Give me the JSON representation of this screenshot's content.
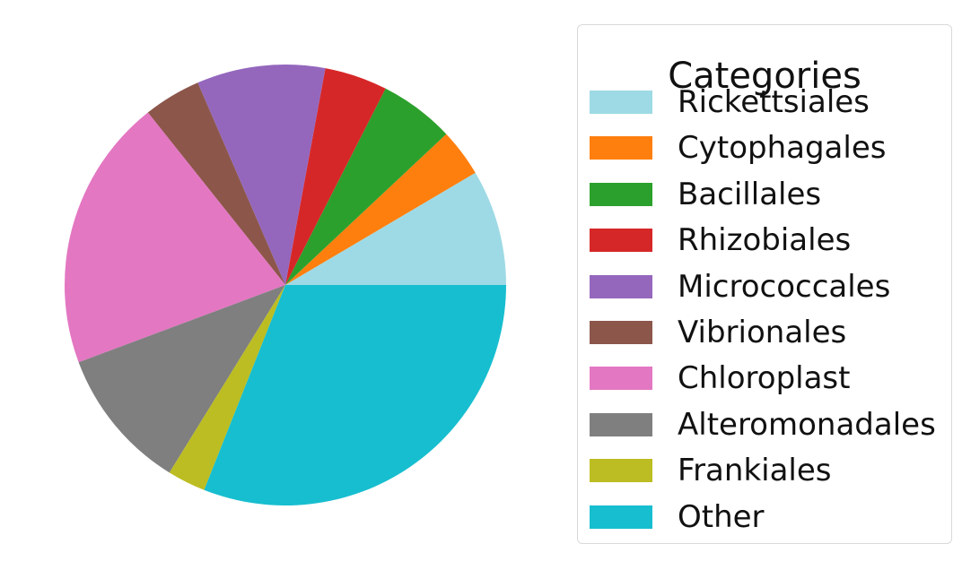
{
  "chart_data": {
    "type": "pie",
    "legend": {
      "title": "Categories",
      "placement": "right"
    },
    "slices": [
      {
        "label": "Rickettsiales",
        "value": 8.5,
        "color": "#9edae5"
      },
      {
        "label": "Cytophagales",
        "value": 3.5,
        "color": "#ff7f0e"
      },
      {
        "label": "Bacillales",
        "value": 5.5,
        "color": "#2ca02c"
      },
      {
        "label": "Rhizobiales",
        "value": 4.6,
        "color": "#d62728"
      },
      {
        "label": "Micrococcales",
        "value": 9.4,
        "color": "#9467bd"
      },
      {
        "label": "Vibrionales",
        "value": 4.2,
        "color": "#8c564b"
      },
      {
        "label": "Chloroplast",
        "value": 20.0,
        "color": "#e377c2"
      },
      {
        "label": "Alteromonadales",
        "value": 10.5,
        "color": "#7f7f7f"
      },
      {
        "label": "Frankiales",
        "value": 2.8,
        "color": "#bcbd22"
      },
      {
        "label": "Other",
        "value": 31.0,
        "color": "#17becf"
      }
    ]
  }
}
